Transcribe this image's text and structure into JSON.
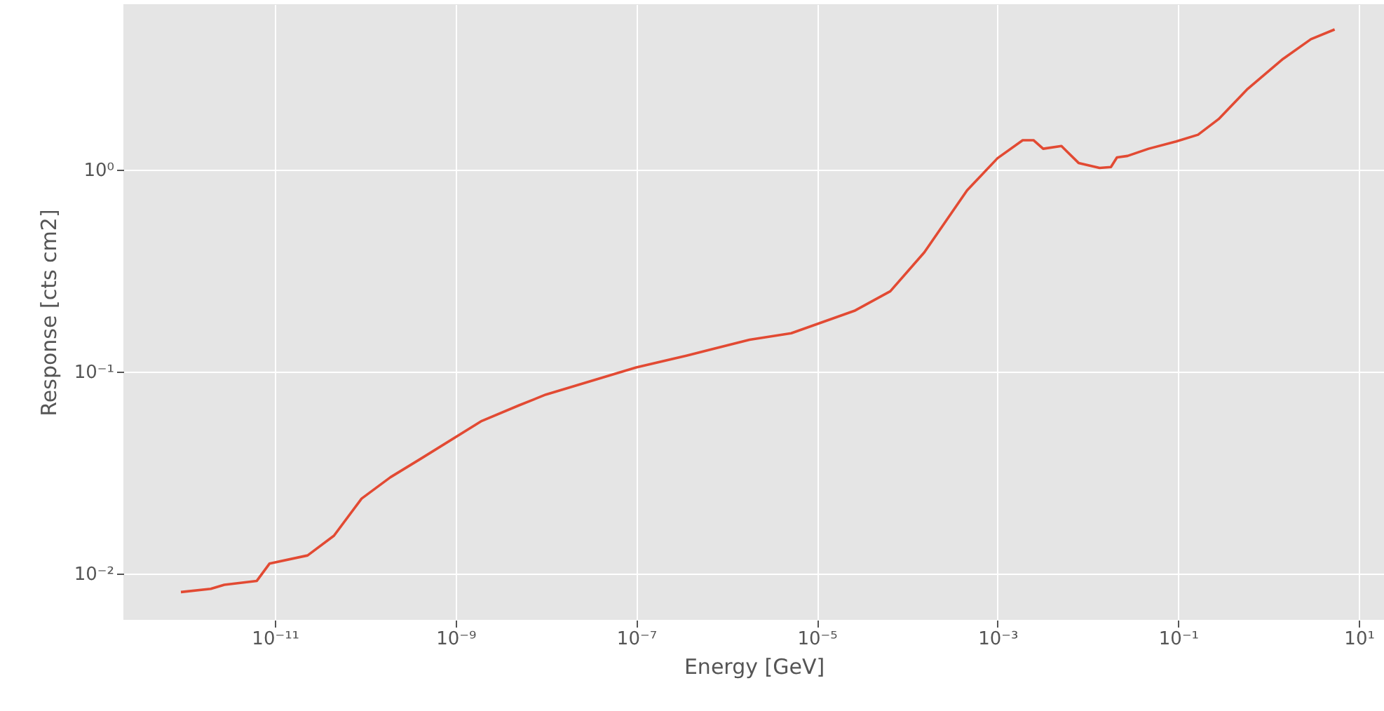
{
  "chart_data": {
    "type": "line",
    "xlabel": "Energy [GeV]",
    "ylabel": "Response [cts cm2]",
    "log": "xy",
    "grid": true,
    "marker": "none",
    "line_style": "solid",
    "xlim": [
      2.1e-13,
      19
    ],
    "ylim": [
      0.0059,
      6.6
    ],
    "xticks": [
      {
        "value": 1e-11,
        "label": "10⁻¹¹"
      },
      {
        "value": 1e-09,
        "label": "10⁻⁹"
      },
      {
        "value": 1e-07,
        "label": "10⁻⁷"
      },
      {
        "value": 1e-05,
        "label": "10⁻⁵"
      },
      {
        "value": 0.001,
        "label": "10⁻³"
      },
      {
        "value": 0.1,
        "label": "10⁻¹"
      },
      {
        "value": 10,
        "label": "10¹"
      }
    ],
    "yticks": [
      {
        "value": 0.01,
        "label": "10⁻²"
      },
      {
        "value": 0.1,
        "label": "10⁻¹"
      },
      {
        "value": 1,
        "label": "10⁰"
      }
    ],
    "x": [
      9.1e-13,
      1.95e-12,
      2.75e-12,
      6.3e-12,
      8.7e-12,
      2.3e-11,
      4.5e-11,
      9.1e-11,
      1.9e-10,
      4.1e-10,
      1.95e-09,
      5e-09,
      1e-08,
      1e-07,
      3.6e-07,
      1.8e-06,
      5.2e-06,
      2.6e-05,
      6.5e-05,
      0.000155,
      0.00046,
      0.001,
      0.0019,
      0.0025,
      0.0032,
      0.0051,
      0.0079,
      0.0135,
      0.018,
      0.021,
      0.0275,
      0.047,
      0.095,
      0.166,
      0.28,
      0.575,
      1.45,
      2.95,
      5.4
    ],
    "series": [
      {
        "color": "#e24a33",
        "values": [
          0.0081,
          0.0084,
          0.0088,
          0.0092,
          0.0112,
          0.0123,
          0.0154,
          0.0235,
          0.03,
          0.037,
          0.057,
          0.068,
          0.077,
          0.105,
          0.12,
          0.144,
          0.155,
          0.2,
          0.25,
          0.39,
          0.79,
          1.14,
          1.4,
          1.4,
          1.27,
          1.31,
          1.08,
          1.02,
          1.03,
          1.15,
          1.17,
          1.27,
          1.38,
          1.49,
          1.78,
          2.49,
          3.54,
          4.43,
          4.95
        ]
      }
    ]
  }
}
